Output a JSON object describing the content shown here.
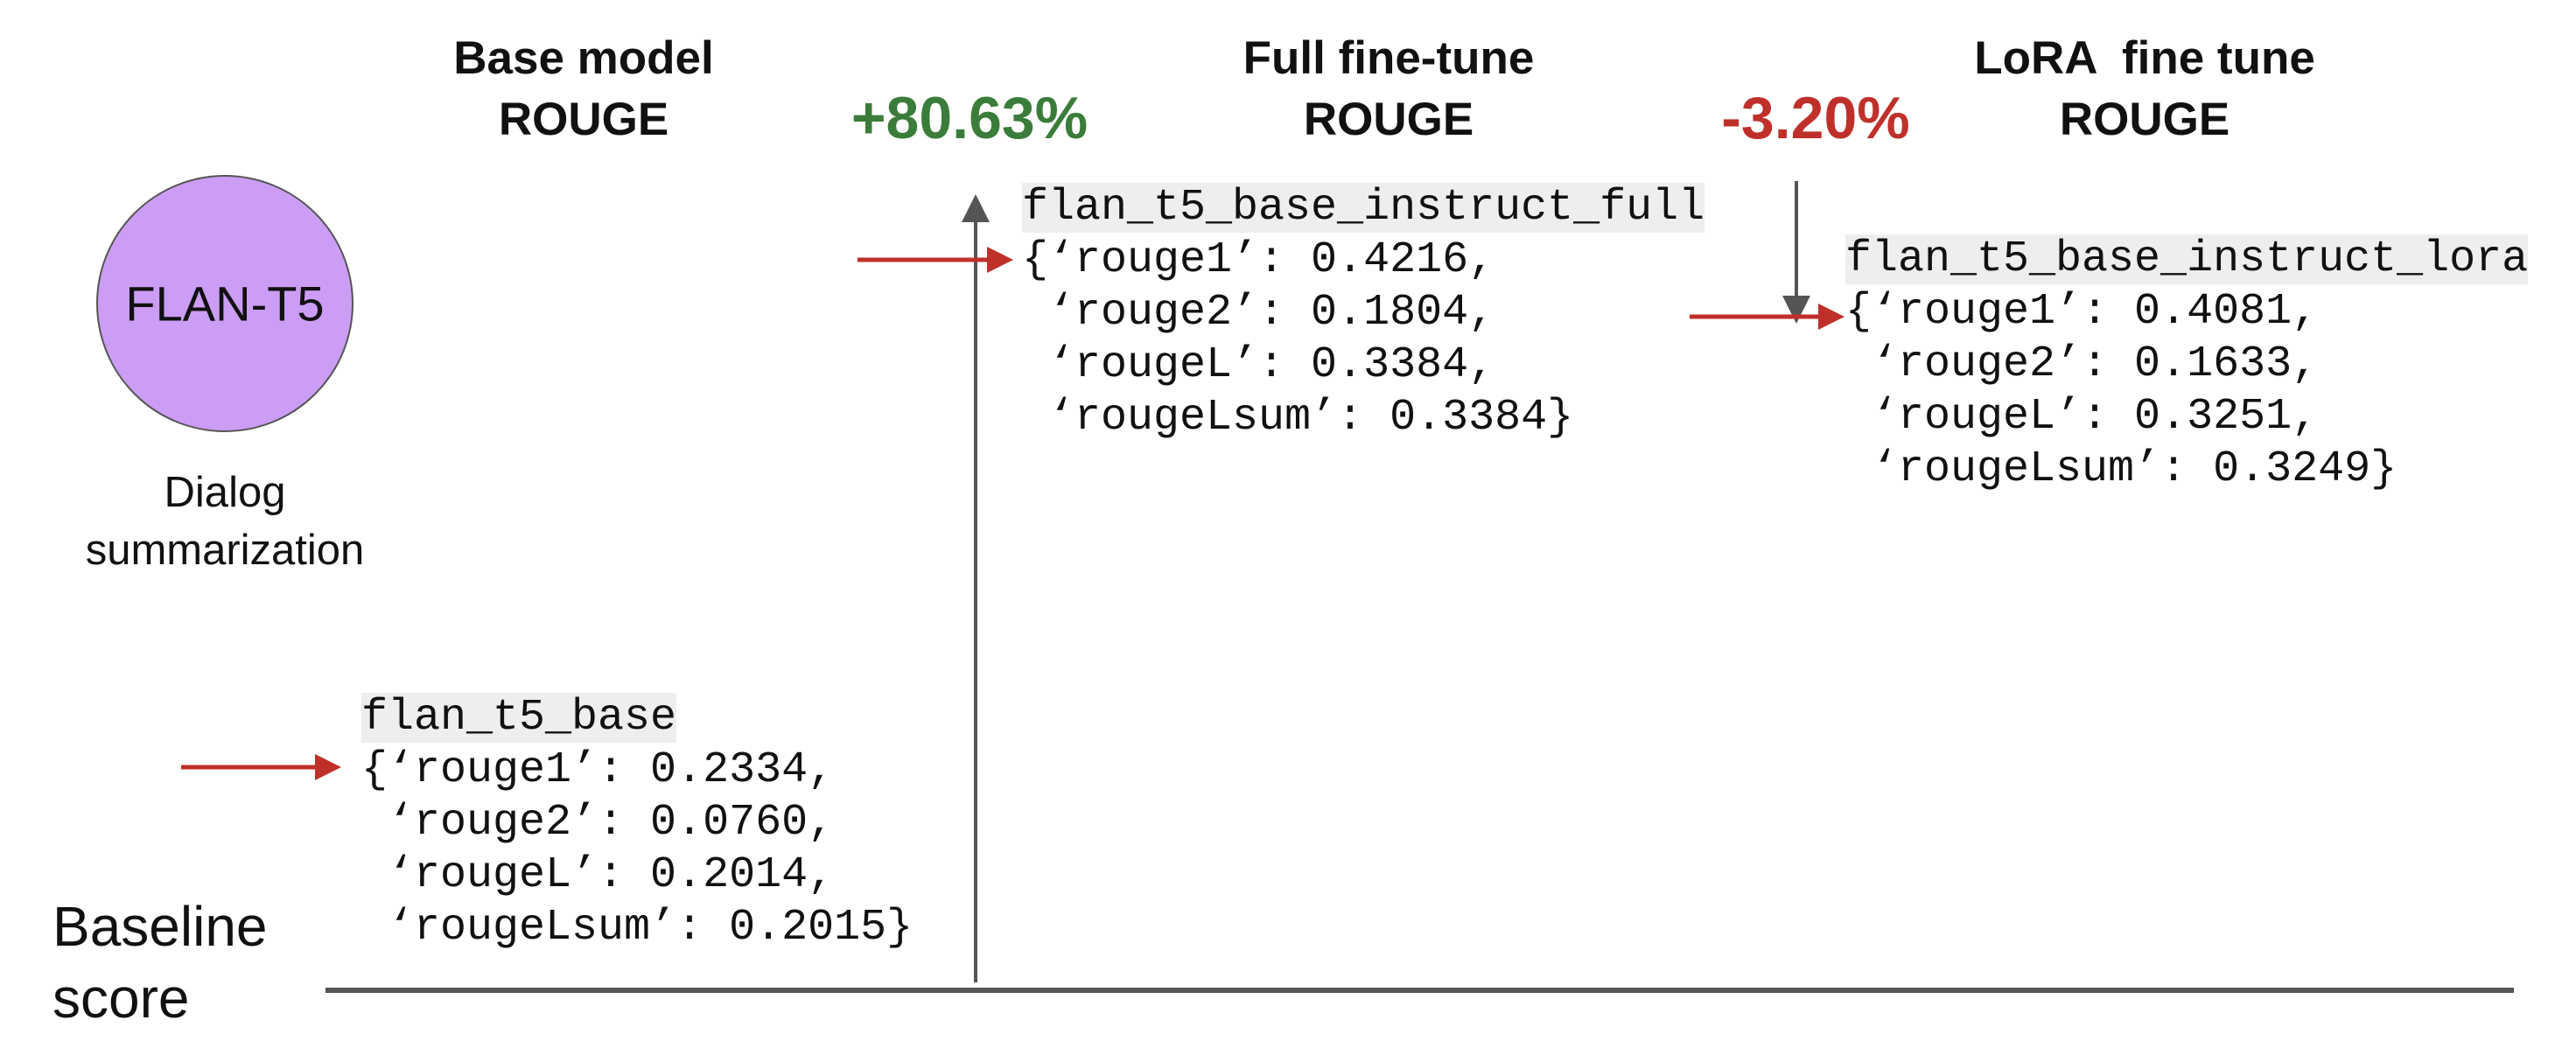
{
  "columns": [
    {
      "title": [
        "Base model",
        "ROUGE"
      ]
    },
    {
      "title": [
        "Full fine-tune",
        "ROUGE"
      ],
      "change": "+80.63%"
    },
    {
      "title": [
        "LoRA  fine tune",
        "ROUGE"
      ],
      "change": "-3.20%"
    }
  ],
  "model": {
    "label": "FLAN-T5",
    "caption": [
      "Dialog",
      "summarization"
    ]
  },
  "baseline": [
    "Baseline",
    "score"
  ],
  "results": [
    {
      "name": "flan_t5_base",
      "lines": [
        "{‘rouge1’: 0.2334,",
        " ‘rouge2’: 0.0760,",
        " ‘rougeL’: 0.2014,",
        " ‘rougeLsum’: 0.2015}"
      ]
    },
    {
      "name": "flan_t5_base_instruct_full",
      "lines": [
        "{‘rouge1’: 0.4216,",
        " ‘rouge2’: 0.1804,",
        " ‘rougeL’: 0.3384,",
        " ‘rougeLsum’: 0.3384}"
      ]
    },
    {
      "name": "flan_t5_base_instruct_lora",
      "lines": [
        "{‘rouge1’: 0.4081,",
        " ‘rouge2’: 0.1633,",
        " ‘rougeL’: 0.3251,",
        " ‘rougeLsum’: 0.3249}"
      ]
    }
  ]
}
